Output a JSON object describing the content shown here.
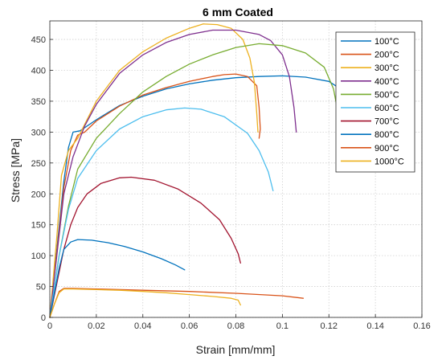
{
  "chart_data": {
    "type": "line",
    "title": "6 mm Coated",
    "xlabel": "Strain [mm/mm]",
    "ylabel": "Stress [MPa]",
    "xlim": [
      0,
      0.16
    ],
    "ylim": [
      0,
      480
    ],
    "xticks": [
      0,
      0.02,
      0.04,
      0.06,
      0.08,
      0.1,
      0.12,
      0.14,
      0.16
    ],
    "xtick_labels": [
      "0",
      "0.02",
      "0.04",
      "0.06",
      "0.08",
      "0.1",
      "0.12",
      "0.14",
      "0.16"
    ],
    "yticks": [
      0,
      50,
      100,
      150,
      200,
      250,
      300,
      350,
      400,
      450
    ],
    "ytick_labels": [
      "0",
      "50",
      "100",
      "150",
      "200",
      "250",
      "300",
      "350",
      "400",
      "450"
    ],
    "grid": true,
    "legend_position": "top-right",
    "series": [
      {
        "name": "100°C",
        "color": "#0072BD",
        "points": [
          [
            0,
            0
          ],
          [
            0.003,
            110
          ],
          [
            0.006,
            220
          ],
          [
            0.008,
            275
          ],
          [
            0.01,
            300
          ],
          [
            0.013,
            302
          ],
          [
            0.02,
            320
          ],
          [
            0.03,
            343
          ],
          [
            0.04,
            358
          ],
          [
            0.05,
            370
          ],
          [
            0.06,
            378
          ],
          [
            0.07,
            384
          ],
          [
            0.08,
            388
          ],
          [
            0.09,
            390
          ],
          [
            0.1,
            391
          ],
          [
            0.11,
            389
          ],
          [
            0.12,
            382
          ],
          [
            0.127,
            365
          ],
          [
            0.131,
            330
          ],
          [
            0.133,
            290
          ],
          [
            0.134,
            240
          ]
        ]
      },
      {
        "name": "200°C",
        "color": "#D95319",
        "points": [
          [
            0,
            0
          ],
          [
            0.003,
            105
          ],
          [
            0.006,
            210
          ],
          [
            0.009,
            270
          ],
          [
            0.012,
            295
          ],
          [
            0.015,
            300
          ],
          [
            0.02,
            318
          ],
          [
            0.03,
            342
          ],
          [
            0.04,
            360
          ],
          [
            0.05,
            372
          ],
          [
            0.06,
            382
          ],
          [
            0.07,
            390
          ],
          [
            0.075,
            393
          ],
          [
            0.08,
            394
          ],
          [
            0.085,
            390
          ],
          [
            0.089,
            375
          ],
          [
            0.09,
            340
          ],
          [
            0.0905,
            305
          ],
          [
            0.09,
            290
          ]
        ]
      },
      {
        "name": "300°C",
        "color": "#EDB120",
        "points": [
          [
            0,
            0
          ],
          [
            0.003,
            130
          ],
          [
            0.005,
            230
          ],
          [
            0.008,
            270
          ],
          [
            0.012,
            290
          ],
          [
            0.02,
            350
          ],
          [
            0.03,
            400
          ],
          [
            0.04,
            430
          ],
          [
            0.05,
            452
          ],
          [
            0.06,
            468
          ],
          [
            0.066,
            475
          ],
          [
            0.072,
            474
          ],
          [
            0.078,
            468
          ],
          [
            0.083,
            450
          ],
          [
            0.086,
            420
          ],
          [
            0.088,
            380
          ],
          [
            0.089,
            330
          ],
          [
            0.0895,
            300
          ]
        ]
      },
      {
        "name": "400°C",
        "color": "#7E2F8E",
        "points": [
          [
            0,
            0
          ],
          [
            0.003,
            100
          ],
          [
            0.006,
            200
          ],
          [
            0.01,
            260
          ],
          [
            0.015,
            310
          ],
          [
            0.02,
            345
          ],
          [
            0.03,
            395
          ],
          [
            0.04,
            425
          ],
          [
            0.05,
            445
          ],
          [
            0.06,
            458
          ],
          [
            0.07,
            465
          ],
          [
            0.08,
            465
          ],
          [
            0.09,
            458
          ],
          [
            0.095,
            448
          ],
          [
            0.1,
            425
          ],
          [
            0.103,
            390
          ],
          [
            0.105,
            340
          ],
          [
            0.106,
            300
          ]
        ]
      },
      {
        "name": "500°C",
        "color": "#77AC30",
        "points": [
          [
            0,
            0
          ],
          [
            0.004,
            100
          ],
          [
            0.008,
            180
          ],
          [
            0.012,
            240
          ],
          [
            0.02,
            290
          ],
          [
            0.03,
            330
          ],
          [
            0.04,
            365
          ],
          [
            0.05,
            390
          ],
          [
            0.06,
            410
          ],
          [
            0.07,
            425
          ],
          [
            0.08,
            437
          ],
          [
            0.09,
            443
          ],
          [
            0.1,
            440
          ],
          [
            0.11,
            428
          ],
          [
            0.118,
            405
          ],
          [
            0.122,
            370
          ],
          [
            0.124,
            330
          ],
          [
            0.1255,
            285
          ]
        ]
      },
      {
        "name": "600°C",
        "color": "#4DBEEE",
        "points": [
          [
            0,
            0
          ],
          [
            0.004,
            100
          ],
          [
            0.008,
            175
          ],
          [
            0.012,
            225
          ],
          [
            0.02,
            270
          ],
          [
            0.03,
            305
          ],
          [
            0.04,
            325
          ],
          [
            0.05,
            336
          ],
          [
            0.058,
            339
          ],
          [
            0.065,
            337
          ],
          [
            0.075,
            325
          ],
          [
            0.085,
            298
          ],
          [
            0.09,
            270
          ],
          [
            0.094,
            235
          ],
          [
            0.096,
            205
          ]
        ]
      },
      {
        "name": "700°C",
        "color": "#A2142F",
        "points": [
          [
            0,
            0
          ],
          [
            0.003,
            55
          ],
          [
            0.006,
            110
          ],
          [
            0.009,
            150
          ],
          [
            0.012,
            178
          ],
          [
            0.016,
            200
          ],
          [
            0.022,
            217
          ],
          [
            0.03,
            226
          ],
          [
            0.035,
            227
          ],
          [
            0.045,
            222
          ],
          [
            0.055,
            208
          ],
          [
            0.065,
            185
          ],
          [
            0.073,
            158
          ],
          [
            0.078,
            128
          ],
          [
            0.081,
            103
          ],
          [
            0.082,
            88
          ]
        ]
      },
      {
        "name": "800°C",
        "color": "#0072BD",
        "points": [
          [
            0,
            0
          ],
          [
            0.002,
            40
          ],
          [
            0.004,
            80
          ],
          [
            0.006,
            110
          ],
          [
            0.009,
            122
          ],
          [
            0.012,
            126
          ],
          [
            0.018,
            125
          ],
          [
            0.025,
            121
          ],
          [
            0.032,
            115
          ],
          [
            0.04,
            106
          ],
          [
            0.048,
            95
          ],
          [
            0.054,
            85
          ],
          [
            0.058,
            77
          ]
        ]
      },
      {
        "name": "900°C",
        "color": "#D95319",
        "points": [
          [
            0,
            0
          ],
          [
            0.002,
            22
          ],
          [
            0.004,
            42
          ],
          [
            0.006,
            47
          ],
          [
            0.01,
            47
          ],
          [
            0.02,
            46
          ],
          [
            0.04,
            44
          ],
          [
            0.06,
            42
          ],
          [
            0.08,
            39
          ],
          [
            0.1,
            35
          ],
          [
            0.109,
            31
          ]
        ]
      },
      {
        "name": "1000°C",
        "color": "#EDB120",
        "points": [
          [
            0,
            0
          ],
          [
            0.002,
            22
          ],
          [
            0.004,
            40
          ],
          [
            0.006,
            46
          ],
          [
            0.01,
            46
          ],
          [
            0.02,
            45
          ],
          [
            0.03,
            44
          ],
          [
            0.04,
            42
          ],
          [
            0.05,
            40
          ],
          [
            0.06,
            37
          ],
          [
            0.07,
            34
          ],
          [
            0.078,
            31
          ],
          [
            0.081,
            28
          ],
          [
            0.082,
            20
          ]
        ]
      }
    ]
  }
}
